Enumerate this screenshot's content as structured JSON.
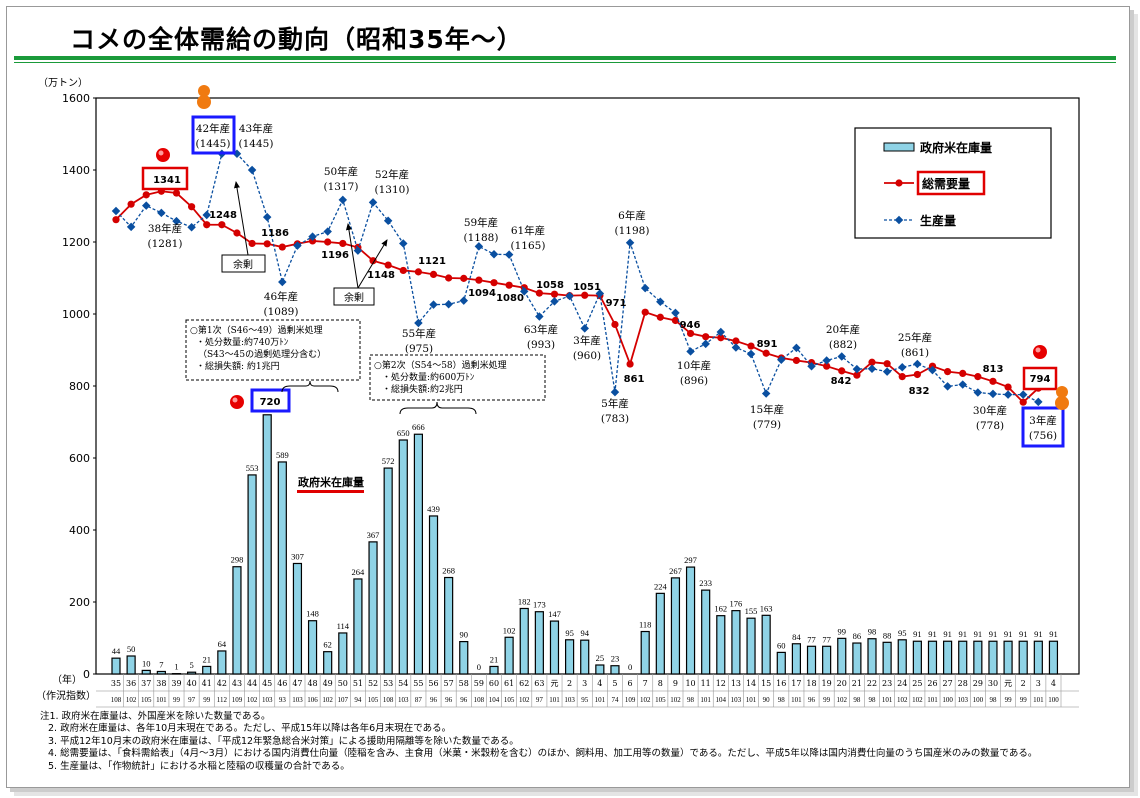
{
  "title": "コメの全体需給の動向（昭和35年～）",
  "chart_data": {
    "type": "bar+line",
    "title": "コメの全体需給の動向（昭和35年～）",
    "y_unit": "（万トン）",
    "ylim": [
      0,
      1600
    ],
    "yticks": [
      "0",
      "200",
      "400",
      "600",
      "800",
      "1000",
      "1200",
      "1400",
      "1600"
    ],
    "x_row_label": "（年）",
    "index_row_label": "（作況指数）",
    "categories": [
      "35",
      "36",
      "37",
      "38",
      "39",
      "40",
      "41",
      "42",
      "43",
      "44",
      "45",
      "46",
      "47",
      "48",
      "49",
      "50",
      "51",
      "52",
      "53",
      "54",
      "55",
      "56",
      "57",
      "58",
      "59",
      "60",
      "61",
      "62",
      "63",
      "元",
      "2",
      "3",
      "4",
      "5",
      "6",
      "7",
      "8",
      "9",
      "10",
      "11",
      "12",
      "13",
      "14",
      "15",
      "16",
      "17",
      "18",
      "19",
      "20",
      "21",
      "22",
      "23",
      "24",
      "25",
      "26",
      "27",
      "28",
      "29",
      "30",
      "元",
      "2",
      "3",
      "4"
    ],
    "crop_index": [
      "108",
      "102",
      "105",
      "101",
      "99",
      "97",
      "99",
      "112",
      "109",
      "102",
      "103",
      "93",
      "103",
      "106",
      "102",
      "107",
      "94",
      "105",
      "108",
      "103",
      "87",
      "96",
      "96",
      "96",
      "108",
      "104",
      "105",
      "102",
      "97",
      "101",
      "103",
      "95",
      "101",
      "74",
      "109",
      "102",
      "105",
      "102",
      "98",
      "101",
      "104",
      "103",
      "101",
      "90",
      "98",
      "101",
      "96",
      "99",
      "102",
      "98",
      "98",
      "101",
      "102",
      "102",
      "101",
      "100",
      "103",
      "100",
      "98",
      "99",
      "99",
      "101",
      "100"
    ],
    "legend": {
      "position": "top-right",
      "items": [
        {
          "name": "政府米在庫量",
          "type": "bar",
          "color": "#8fd3e6"
        },
        {
          "name": "総需要量",
          "type": "line-circle",
          "color": "#d40000"
        },
        {
          "name": "生産量",
          "type": "dashed-diamond",
          "color": "#0a4fa0"
        }
      ]
    },
    "series": [
      {
        "name": "政府米在庫量",
        "type": "bar",
        "color": "#8fd3e6",
        "values": [
          44,
          50,
          10,
          7,
          1,
          5,
          21,
          64,
          298,
          553,
          720,
          589,
          307,
          148,
          62,
          114,
          264,
          367,
          572,
          650,
          666,
          439,
          268,
          90,
          0,
          21,
          102,
          182,
          173,
          147,
          95,
          94,
          25,
          23,
          0,
          118,
          224,
          267,
          297,
          233,
          162,
          176,
          155,
          163,
          60,
          84,
          77,
          77,
          99,
          86,
          98,
          88,
          95,
          91,
          91,
          91,
          91,
          91,
          91,
          91,
          91,
          91,
          91
        ]
      },
      {
        "name": "総需要量",
        "type": "line",
        "color": "#d40000",
        "values": [
          1262,
          1305,
          1331,
          1341,
          1336,
          1298,
          1248,
          1248,
          1225,
          1196,
          1195,
          1186,
          1195,
          1203,
          1200,
          1196,
          1185,
          1148,
          1136,
          1121,
          1117,
          1110,
          1100,
          1099,
          1094,
          1087,
          1080,
          1073,
          1058,
          1055,
          1051,
          1052,
          1051,
          971,
          861,
          1005,
          991,
          982,
          946,
          937,
          934,
          925,
          911,
          891,
          878,
          871,
          865,
          855,
          842,
          830,
          866,
          862,
          826,
          832,
          855,
          840,
          835,
          826,
          813,
          797,
          755,
          794,
          null
        ]
      },
      {
        "name": "生産量",
        "type": "line",
        "color": "#0a4fa0",
        "values": [
          1286,
          1242,
          1301,
          1281,
          1258,
          1241,
          1275,
          1445,
          1445,
          1400,
          1269,
          1089,
          1190,
          1215,
          1229,
          1317,
          1176,
          1310,
          1259,
          1196,
          975,
          1026,
          1027,
          1037,
          1188,
          1166,
          1165,
          1063,
          993,
          1035,
          1050,
          960,
          1057,
          783,
          1198,
          1072,
          1034,
          1003,
          896,
          917,
          950,
          907,
          889,
          779,
          873,
          906,
          855,
          871,
          882,
          847,
          848,
          840,
          852,
          861,
          844,
          799,
          804,
          782,
          778,
          776,
          776,
          756,
          null
        ]
      }
    ],
    "production_labels": [
      {
        "year": "38年産",
        "value": "(1281)"
      },
      {
        "year": "42年産",
        "value": "(1445)"
      },
      {
        "year": "43年産",
        "value": "(1445)"
      },
      {
        "year": "46年産",
        "value": "(1089)"
      },
      {
        "year": "50年産",
        "value": "(1317)"
      },
      {
        "year": "52年産",
        "value": "(1310)"
      },
      {
        "year": "55年産",
        "value": "(975)"
      },
      {
        "year": "59年産",
        "value": "(1188)"
      },
      {
        "year": "61年産",
        "value": "(1165)"
      },
      {
        "year": "63年産",
        "value": "(993)"
      },
      {
        "year": "3年産",
        "value": "(960)"
      },
      {
        "year": "5年産",
        "value": "(783)"
      },
      {
        "year": "6年産",
        "value": "(1198)"
      },
      {
        "year": "10年産",
        "value": "(896)"
      },
      {
        "year": "15年産",
        "value": "(779)"
      },
      {
        "year": "20年産",
        "value": "(882)"
      },
      {
        "year": "25年産",
        "value": "(861)"
      },
      {
        "year": "30年産",
        "value": "(778)"
      },
      {
        "year": "3年産",
        "value": "(756)"
      }
    ],
    "demand_labels": [
      "1341",
      "1248",
      "1186",
      "1196",
      "1148",
      "1121",
      "1094",
      "1080",
      "1058",
      "1051",
      "971",
      "861",
      "946",
      "891",
      "842",
      "832",
      "813",
      "794"
    ],
    "annotations": {
      "surplus_label": "余剰",
      "stock_label": "政府米在庫量",
      "disposal1": [
        "○第1次（S46～49）過剰米処理",
        "・処分数量:約740万ﾄﾝ",
        "（S43～45の過剰処理分含む）",
        "・総損失額: 約1兆円"
      ],
      "disposal2": [
        "○第2次（S54～58）過剰米処理",
        "・処分数量:約600万ﾄﾝ",
        "・総損失額:約2兆円"
      ]
    }
  },
  "notes": [
    "注1. 政府米在庫量は、外国産米を除いた数量である。",
    "2. 政府米在庫量は、各年10月末現在である。ただし、平成15年以降は各年6月末現在である。",
    "3. 平成12年10月末の政府米在庫量は、「平成12年緊急総合米対策」による援助用隔離等を除いた数量である。",
    "4. 総需要量は、「食料需給表」（4月～3月）における国内消費仕向量（陸稲を含み、主食用（米菓・米穀粉を含む）のほか、飼料用、加工用等の数量）である。ただし、平成5年以降は国内消費仕向量のうち国産米のみの数量である。",
    "5. 生産量は、「作物統計」における水稲と陸稲の収穫量の合計である。"
  ]
}
